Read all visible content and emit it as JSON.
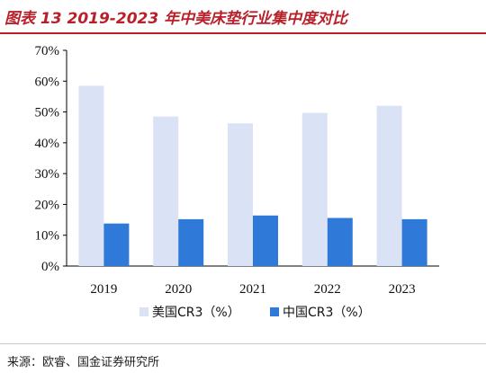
{
  "page": {
    "title": "图表 13 2019-2023 年中美床垫行业集中度对比",
    "source": "来源：欧睿、国金证券研究所"
  },
  "chart_data": {
    "type": "bar",
    "categories": [
      "2019",
      "2020",
      "2021",
      "2022",
      "2023"
    ],
    "series": [
      {
        "name": "美国CR3（%）",
        "values": [
          58.5,
          48.5,
          46.3,
          49.7,
          52.0
        ],
        "color": "#dae2f6"
      },
      {
        "name": "中国CR3（%）",
        "values": [
          13.8,
          15.2,
          16.4,
          15.6,
          15.2
        ],
        "color": "#2f79d8"
      }
    ],
    "ylim": [
      0,
      70
    ],
    "yticks": [
      "0%",
      "10%",
      "20%",
      "30%",
      "40%",
      "50%",
      "60%",
      "70%"
    ],
    "ytick_values": [
      0,
      10,
      20,
      30,
      40,
      50,
      60,
      70
    ],
    "grid": false,
    "legend_position": "bottom-center"
  }
}
